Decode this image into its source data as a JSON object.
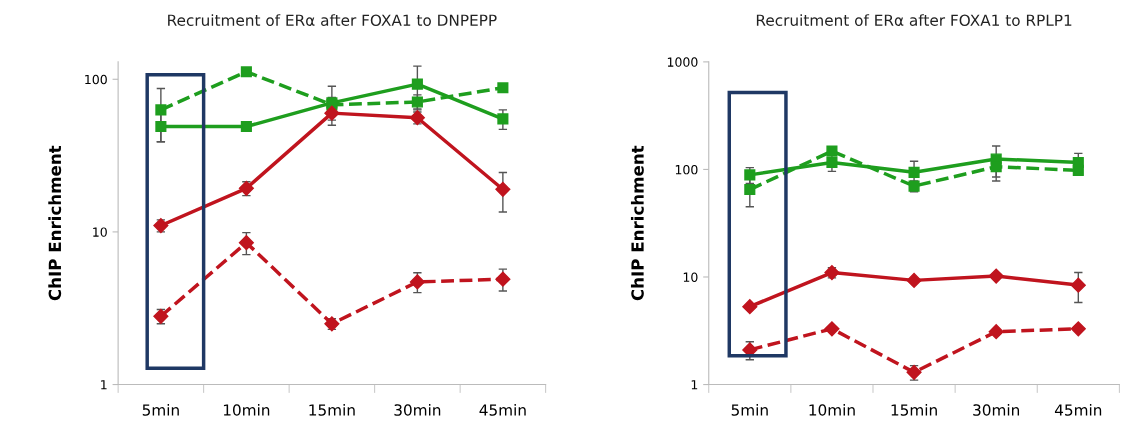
{
  "chart_data": [
    {
      "type": "line",
      "title": "Recruitment of ERα after FOXA1 to DNPEPP",
      "ylabel": "ChIP Enrichment",
      "log": "y",
      "ylim": [
        1,
        130
      ],
      "yticks": [
        1,
        10,
        100
      ],
      "grid": false,
      "legend": false,
      "categories": [
        "5min",
        "10min",
        "15min",
        "30min",
        "45min"
      ],
      "series": [
        {
          "color": "#1e9e1e",
          "marker": "square",
          "line_style": "solid",
          "values": [
            49,
            49,
            70,
            93,
            55
          ],
          "errors": [
            10,
            null,
            20,
            29,
            8
          ]
        },
        {
          "color": "#1e9e1e",
          "marker": "square",
          "line_style": "dashed",
          "values": [
            63,
            112,
            68,
            71,
            88
          ],
          "errors": [
            24,
            null,
            8,
            8,
            null
          ]
        },
        {
          "color": "#c0141e",
          "marker": "diamond",
          "line_style": "solid",
          "values": [
            11,
            19.3,
            60,
            56,
            19
          ],
          "errors": [
            1,
            2,
            6,
            5,
            5.5
          ]
        },
        {
          "color": "#c0141e",
          "marker": "diamond",
          "line_style": "dashed",
          "values": [
            2.8,
            8.5,
            2.5,
            4.7,
            4.9
          ],
          "errors": [
            0.3,
            1.4,
            0.2,
            0.7,
            0.8
          ]
        }
      ]
    },
    {
      "type": "line",
      "title": "Recruitment of ERα after FOXA1 to RPLP1",
      "ylabel": "ChIP Enrichment",
      "log": "y",
      "ylim": [
        1,
        1000
      ],
      "yticks": [
        1,
        10,
        100,
        1000
      ],
      "grid": false,
      "legend": false,
      "categories": [
        "5min",
        "10min",
        "15min",
        "30min",
        "45min"
      ],
      "series": [
        {
          "color": "#1e9e1e",
          "marker": "square",
          "line_style": "solid",
          "values": [
            89,
            116,
            94,
            125,
            116
          ],
          "errors": [
            15,
            20,
            25,
            40,
            25
          ]
        },
        {
          "color": "#1e9e1e",
          "marker": "square",
          "line_style": "dashed",
          "values": [
            65,
            148,
            70,
            106,
            98
          ],
          "errors": [
            20,
            null,
            8,
            28,
            null
          ]
        },
        {
          "color": "#c0141e",
          "marker": "diamond",
          "line_style": "solid",
          "values": [
            5.3,
            11,
            9.3,
            10.2,
            8.4
          ],
          "errors": [
            null,
            1.2,
            null,
            null,
            2.6
          ]
        },
        {
          "color": "#c0141e",
          "marker": "diamond",
          "line_style": "dashed",
          "values": [
            2.1,
            3.3,
            1.3,
            3.1,
            3.3
          ],
          "errors": [
            0.4,
            null,
            0.2,
            null,
            null
          ]
        }
      ]
    }
  ]
}
